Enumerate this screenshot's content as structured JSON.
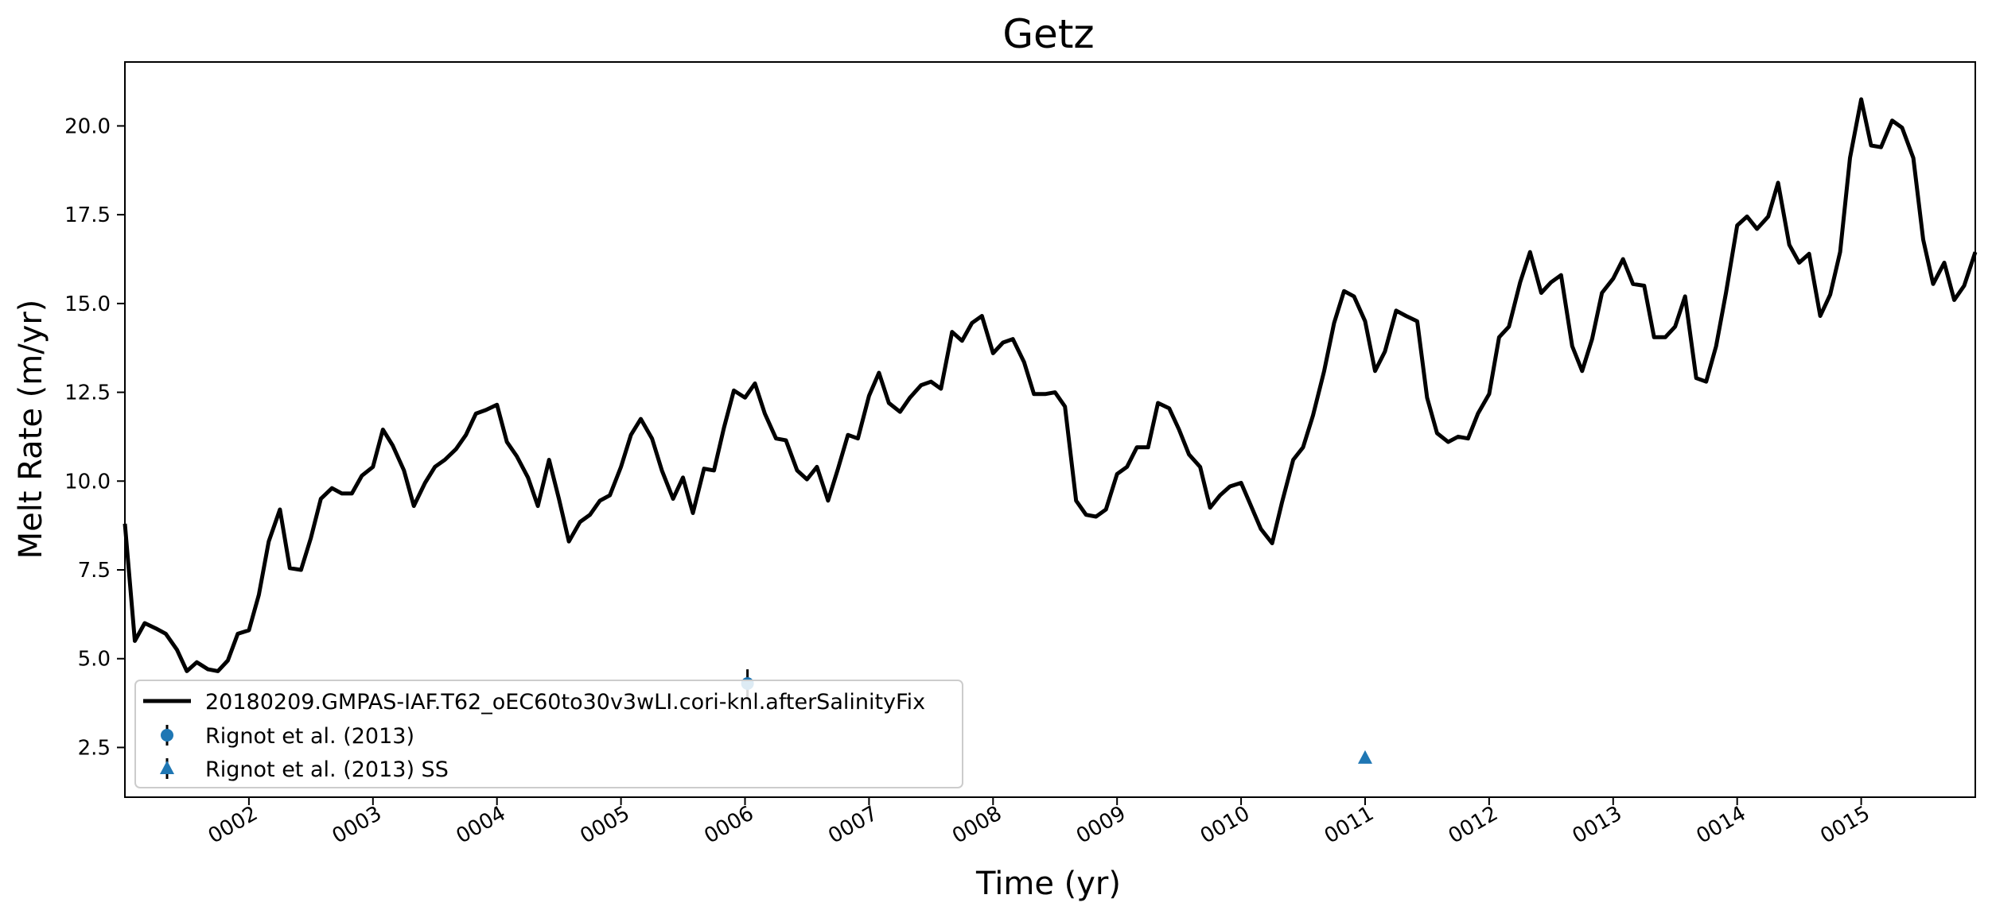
{
  "chart_data": {
    "type": "line",
    "title": "Getz",
    "xlabel": "Time (yr)",
    "ylabel": "Melt Rate (m/yr)",
    "xlim": [
      1.0,
      15.92
    ],
    "ylim": [
      1.1,
      21.8
    ],
    "x_ticks": [
      {
        "value": 2,
        "label": "0002"
      },
      {
        "value": 3,
        "label": "0003"
      },
      {
        "value": 4,
        "label": "0004"
      },
      {
        "value": 5,
        "label": "0005"
      },
      {
        "value": 6,
        "label": "0006"
      },
      {
        "value": 7,
        "label": "0007"
      },
      {
        "value": 8,
        "label": "0008"
      },
      {
        "value": 9,
        "label": "0009"
      },
      {
        "value": 10,
        "label": "0010"
      },
      {
        "value": 11,
        "label": "0011"
      },
      {
        "value": 12,
        "label": "0012"
      },
      {
        "value": 13,
        "label": "0013"
      },
      {
        "value": 14,
        "label": "0014"
      },
      {
        "value": 15,
        "label": "0015"
      }
    ],
    "y_ticks": [
      {
        "value": 2.5,
        "label": "2.5"
      },
      {
        "value": 5.0,
        "label": "5.0"
      },
      {
        "value": 7.5,
        "label": "7.5"
      },
      {
        "value": 10.0,
        "label": "10.0"
      },
      {
        "value": 12.5,
        "label": "12.5"
      },
      {
        "value": 15.0,
        "label": "15.0"
      },
      {
        "value": 17.5,
        "label": "17.5"
      },
      {
        "value": 20.0,
        "label": "20.0"
      }
    ],
    "grid": false,
    "legend_position": "lower-left",
    "series": [
      {
        "name": "20180209.GMPAS-IAF.T62_oEC60to30v3wLI.cori-knl.afterSalinityFix",
        "kind": "line",
        "color": "#000000",
        "x": [
          1.0,
          1.08,
          1.16,
          1.25,
          1.33,
          1.42,
          1.5,
          1.58,
          1.67,
          1.75,
          1.83,
          1.91,
          2.0,
          2.08,
          2.16,
          2.25,
          2.33,
          2.42,
          2.5,
          2.58,
          2.67,
          2.75,
          2.83,
          2.91,
          3.0,
          3.08,
          3.16,
          3.25,
          3.33,
          3.42,
          3.5,
          3.58,
          3.67,
          3.75,
          3.83,
          3.91,
          4.0,
          4.08,
          4.16,
          4.25,
          4.33,
          4.42,
          4.5,
          4.58,
          4.67,
          4.75,
          4.83,
          4.91,
          5.0,
          5.08,
          5.16,
          5.25,
          5.33,
          5.42,
          5.5,
          5.58,
          5.67,
          5.75,
          5.83,
          5.91,
          6.0,
          6.08,
          6.16,
          6.25,
          6.33,
          6.42,
          6.5,
          6.58,
          6.67,
          6.75,
          6.83,
          6.91,
          7.0,
          7.08,
          7.16,
          7.25,
          7.33,
          7.42,
          7.5,
          7.58,
          7.67,
          7.75,
          7.83,
          7.91,
          8.0,
          8.08,
          8.16,
          8.25,
          8.33,
          8.42,
          8.5,
          8.58,
          8.67,
          8.75,
          8.83,
          8.91,
          9.0,
          9.08,
          9.16,
          9.25,
          9.33,
          9.42,
          9.5,
          9.58,
          9.67,
          9.75,
          9.83,
          9.91,
          10.0,
          10.08,
          10.16,
          10.25,
          10.33,
          10.42,
          10.5,
          10.58,
          10.67,
          10.75,
          10.83,
          10.91,
          11.0,
          11.08,
          11.16,
          11.25,
          11.33,
          11.42,
          11.5,
          11.58,
          11.67,
          11.75,
          11.83,
          11.91,
          12.0,
          12.08,
          12.16,
          12.25,
          12.33,
          12.42,
          12.5,
          12.58,
          12.67,
          12.75,
          12.83,
          12.91,
          13.0,
          13.08,
          13.16,
          13.25,
          13.33,
          13.42,
          13.5,
          13.58,
          13.67,
          13.75,
          13.83,
          13.91,
          14.0,
          14.08,
          14.16,
          14.25,
          14.33,
          14.42,
          14.5,
          14.58,
          14.67,
          14.75,
          14.83,
          14.91,
          15.0,
          15.08,
          15.16,
          15.25,
          15.33,
          15.42,
          15.5,
          15.58,
          15.67,
          15.75,
          15.83,
          15.92
        ],
        "y": [
          8.8,
          5.5,
          6.0,
          5.85,
          5.7,
          5.25,
          4.65,
          4.9,
          4.7,
          4.65,
          4.95,
          5.7,
          5.8,
          6.8,
          8.3,
          9.2,
          7.55,
          7.5,
          8.4,
          9.5,
          9.8,
          9.65,
          9.65,
          10.15,
          10.4,
          11.45,
          11.0,
          10.3,
          9.3,
          9.95,
          10.4,
          10.6,
          10.9,
          11.3,
          11.9,
          12.0,
          12.15,
          11.1,
          10.7,
          10.1,
          9.3,
          10.6,
          9.5,
          8.3,
          8.85,
          9.05,
          9.45,
          9.6,
          10.4,
          11.3,
          11.75,
          11.2,
          10.3,
          9.5,
          10.1,
          9.1,
          10.35,
          10.3,
          11.5,
          12.55,
          12.35,
          12.75,
          11.9,
          11.2,
          11.15,
          10.3,
          10.05,
          10.4,
          9.45,
          10.35,
          11.3,
          11.2,
          12.4,
          13.05,
          12.2,
          11.95,
          12.35,
          12.7,
          12.8,
          12.6,
          14.2,
          13.95,
          14.45,
          14.65,
          13.6,
          13.9,
          14.0,
          13.35,
          12.45,
          12.45,
          12.5,
          12.1,
          9.45,
          9.05,
          9.0,
          9.2,
          10.2,
          10.4,
          10.95,
          10.95,
          12.2,
          12.05,
          11.45,
          10.75,
          10.4,
          9.25,
          9.6,
          9.85,
          9.95,
          9.3,
          8.65,
          8.25,
          9.4,
          10.6,
          10.95,
          11.85,
          13.1,
          14.45,
          15.35,
          15.2,
          14.5,
          13.1,
          13.65,
          14.8,
          14.65,
          14.5,
          12.35,
          11.35,
          11.1,
          11.25,
          11.2,
          11.9,
          12.45,
          14.05,
          14.35,
          15.6,
          16.45,
          15.3,
          15.6,
          15.8,
          13.8,
          13.1,
          14.0,
          15.3,
          15.7,
          16.25,
          15.55,
          15.5,
          14.05,
          14.05,
          14.35,
          15.2,
          12.9,
          12.8,
          13.8,
          15.3,
          17.2,
          17.45,
          17.1,
          17.45,
          18.4,
          16.65,
          16.15,
          16.4,
          14.65,
          15.25,
          16.45,
          19.1,
          20.75,
          19.45,
          19.4,
          20.15,
          19.95,
          19.1,
          16.8,
          15.55,
          16.15,
          15.1,
          15.5,
          16.45
        ]
      },
      {
        "name": "Rignot et al. (2013)",
        "kind": "errorbar",
        "marker": "circle",
        "color": "#1f77b4",
        "x": [
          6.02
        ],
        "y": [
          4.3
        ],
        "yerr": [
          0.4
        ]
      },
      {
        "name": "Rignot et al. (2013) SS",
        "kind": "errorbar",
        "marker": "triangle",
        "color": "#1f77b4",
        "x": [
          11.0
        ],
        "y": [
          2.2
        ],
        "yerr": [
          0.1
        ]
      }
    ]
  }
}
